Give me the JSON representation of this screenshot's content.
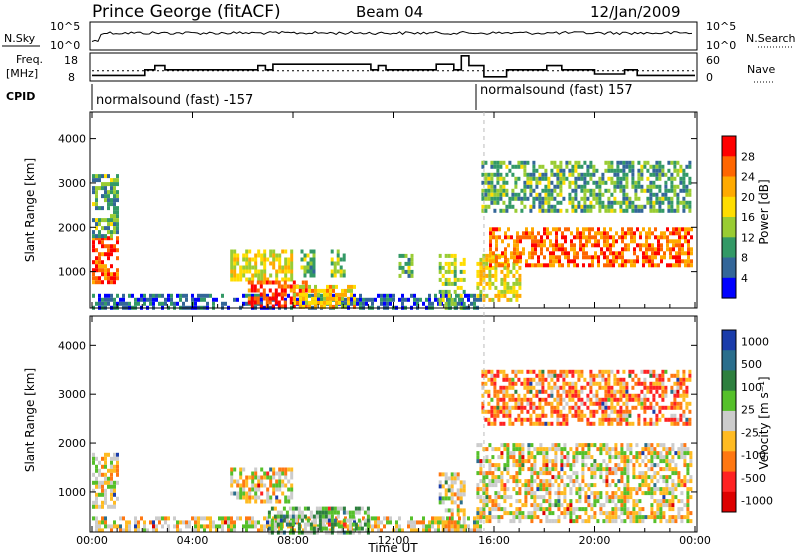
{
  "header": {
    "station": "Prince George (fitACF)",
    "beam": "Beam 04",
    "date": "12/Jan/2009"
  },
  "status_panel": {
    "nsky_label": "N.Sky",
    "nsky_ticks": [
      "10^5",
      "10^0"
    ],
    "nsearch_label": "N.Search",
    "nsearch_ticks": [
      "10^5",
      "10^0"
    ],
    "freq_label_1": "Freq.",
    "freq_label_2": "[MHz]",
    "freq_ticks": [
      "18",
      "8"
    ],
    "nave_label": "Nave",
    "nave_ticks": [
      "60",
      "0"
    ],
    "cpid_label": "CPID",
    "cpid_segments": [
      {
        "name": "normalsound (fast) -157",
        "start_hour": 0,
        "end_hour": 15.6
      },
      {
        "name": "normalsound (fast) 157",
        "start_hour": 15.6,
        "end_hour": 24
      }
    ],
    "freq_series_mhz": [
      [
        0,
        10
      ],
      [
        2.1,
        10
      ],
      [
        2.1,
        12
      ],
      [
        2.5,
        12
      ],
      [
        2.5,
        13.5
      ],
      [
        2.9,
        13.5
      ],
      [
        2.9,
        12
      ],
      [
        6.6,
        12
      ],
      [
        6.6,
        13.5
      ],
      [
        6.9,
        13.5
      ],
      [
        6.9,
        12
      ],
      [
        7.2,
        12
      ],
      [
        7.2,
        14
      ],
      [
        11.1,
        14
      ],
      [
        11.1,
        12
      ],
      [
        11.4,
        12
      ],
      [
        11.4,
        13.5
      ],
      [
        11.7,
        13.5
      ],
      [
        11.7,
        12
      ],
      [
        13.7,
        12
      ],
      [
        13.7,
        14
      ],
      [
        14.4,
        14
      ],
      [
        14.4,
        12
      ],
      [
        14.7,
        12
      ],
      [
        14.7,
        17
      ],
      [
        15.0,
        17
      ],
      [
        15.0,
        13.5
      ],
      [
        15.6,
        13.5
      ],
      [
        15.6,
        9.5
      ],
      [
        16.5,
        9.5
      ],
      [
        16.5,
        12
      ],
      [
        18.1,
        12
      ],
      [
        18.1,
        13.5
      ],
      [
        18.7,
        13.5
      ],
      [
        18.7,
        12
      ],
      [
        20.0,
        12
      ],
      [
        20.0,
        10.5
      ],
      [
        21.2,
        10.5
      ],
      [
        21.2,
        12
      ],
      [
        21.7,
        12
      ],
      [
        21.7,
        10
      ],
      [
        24,
        10
      ]
    ],
    "nave_dotted_level": 22
  },
  "chart_data": [
    {
      "type": "heatmap",
      "title": "Power",
      "ylabel": "Slant Range [km]",
      "ylim": [
        180,
        4600
      ],
      "xlim": [
        0,
        24
      ],
      "yticks": [
        1000,
        2000,
        3000,
        4000
      ],
      "colorbar_label": "Power [dB]",
      "colorbar_ticks": [
        "28",
        "24",
        "20",
        "16",
        "12",
        "8",
        "4"
      ],
      "colors": [
        "#ff0000",
        "#ff6600",
        "#ffaa00",
        "#ffdd00",
        "#99cc33",
        "#339966",
        "#336699",
        "#0000ff"
      ],
      "regions": [
        {
          "x": [
            0.0,
            1.0
          ],
          "y": [
            800,
            1800
          ],
          "level": 0.85
        },
        {
          "x": [
            0.0,
            1.0
          ],
          "y": [
            1800,
            3200
          ],
          "level": 0.35
        },
        {
          "x": [
            0.0,
            15.5
          ],
          "y": [
            180,
            500
          ],
          "level": 0.2
        },
        {
          "x": [
            5.5,
            8.0
          ],
          "y": [
            800,
            1500
          ],
          "level": 0.55
        },
        {
          "x": [
            6.2,
            8.5
          ],
          "y": [
            180,
            800
          ],
          "level": 0.9
        },
        {
          "x": [
            8.0,
            10.5
          ],
          "y": [
            180,
            700
          ],
          "level": 0.6
        },
        {
          "x": [
            8.3,
            8.8
          ],
          "y": [
            900,
            1500
          ],
          "level": 0.4
        },
        {
          "x": [
            9.5,
            10.0
          ],
          "y": [
            900,
            1500
          ],
          "level": 0.4
        },
        {
          "x": [
            12.2,
            12.7
          ],
          "y": [
            900,
            1400
          ],
          "level": 0.35
        },
        {
          "x": [
            13.8,
            14.8
          ],
          "y": [
            200,
            1400
          ],
          "level": 0.45
        },
        {
          "x": [
            15.3,
            17.0
          ],
          "y": [
            400,
            1400
          ],
          "level": 0.55
        },
        {
          "x": [
            15.8,
            23.8
          ],
          "y": [
            1100,
            2000
          ],
          "level": 0.8
        },
        {
          "x": [
            15.5,
            23.8
          ],
          "y": [
            2400,
            3500
          ],
          "level": 0.35
        }
      ]
    },
    {
      "type": "heatmap",
      "title": "Velocity",
      "ylabel": "Slant Range [km]",
      "ylim": [
        180,
        4600
      ],
      "xlim": [
        0,
        24
      ],
      "yticks": [
        1000,
        2000,
        3000,
        4000
      ],
      "xlabel": "Time UT",
      "xticks": [
        "00:00",
        "04:00",
        "08:00",
        "12:00",
        "16:00",
        "20:00",
        "00:00"
      ],
      "colorbar_label": "Velocity [m s⁻¹]",
      "colorbar_ticks": [
        "1000",
        "500",
        "100",
        "25",
        "-25",
        "-100",
        "-500",
        "-1000"
      ],
      "colors": [
        "#1a3caa",
        "#2a6e8c",
        "#2d7f3e",
        "#55c02a",
        "#cccccc",
        "#ffbb22",
        "#ff7711",
        "#ff2222",
        "#dd0000"
      ],
      "regions": [
        {
          "x": [
            0.0,
            1.0
          ],
          "y": [
            700,
            1800
          ],
          "level": 0.45
        },
        {
          "x": [
            0.0,
            15.5
          ],
          "y": [
            180,
            500
          ],
          "level": 0.45
        },
        {
          "x": [
            5.5,
            8.0
          ],
          "y": [
            800,
            1500
          ],
          "level": 0.45
        },
        {
          "x": [
            7.0,
            11.0
          ],
          "y": [
            180,
            700
          ],
          "level": 0.62
        },
        {
          "x": [
            13.8,
            14.8
          ],
          "y": [
            200,
            1400
          ],
          "level": 0.45
        },
        {
          "x": [
            15.3,
            23.8
          ],
          "y": [
            400,
            2000
          ],
          "level": 0.45
        },
        {
          "x": [
            15.5,
            23.8
          ],
          "y": [
            2400,
            3500
          ],
          "level": 0.3
        }
      ]
    }
  ]
}
